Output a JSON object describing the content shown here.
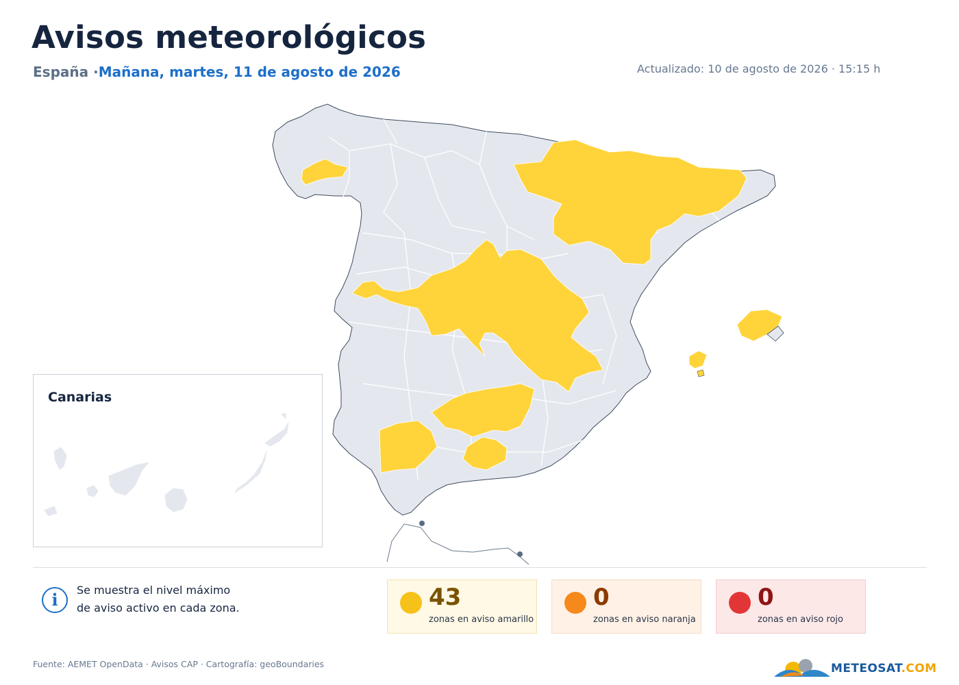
{
  "header": {
    "title": "Avisos meteorológicos",
    "country": "España",
    "separator": " ·",
    "date": "Mañana, martes, 11 de agosto de 2026",
    "updated": "Actualizado: 10 de agosto de 2026 · 15:15 h"
  },
  "inset": {
    "title": "Canarias"
  },
  "info": {
    "icon": "info-icon",
    "line1": "Se muestra el nivel máximo",
    "line2": "de aviso activo en cada zona."
  },
  "summary": [
    {
      "level": "amarillo",
      "count": "43",
      "label": "zonas en aviso amarillo",
      "color": "#f6c21a"
    },
    {
      "level": "naranja",
      "count": "0",
      "label": "zonas en aviso naranja",
      "color": "#f7881c"
    },
    {
      "level": "rojo",
      "count": "0",
      "label": "zonas en aviso rojo",
      "color": "#e23636"
    }
  ],
  "colors": {
    "land": "#e4e8ee",
    "warning_yellow": "#ffd43b",
    "border": "#ffffff",
    "outline": "#3d4a5c"
  },
  "footer": {
    "source": "Fuente: AEMET OpenData · Avisos CAP · Cartografía: geoBoundaries"
  },
  "brand": {
    "part1": "METEO",
    "part2": "SAT",
    "part3": ".COM"
  }
}
